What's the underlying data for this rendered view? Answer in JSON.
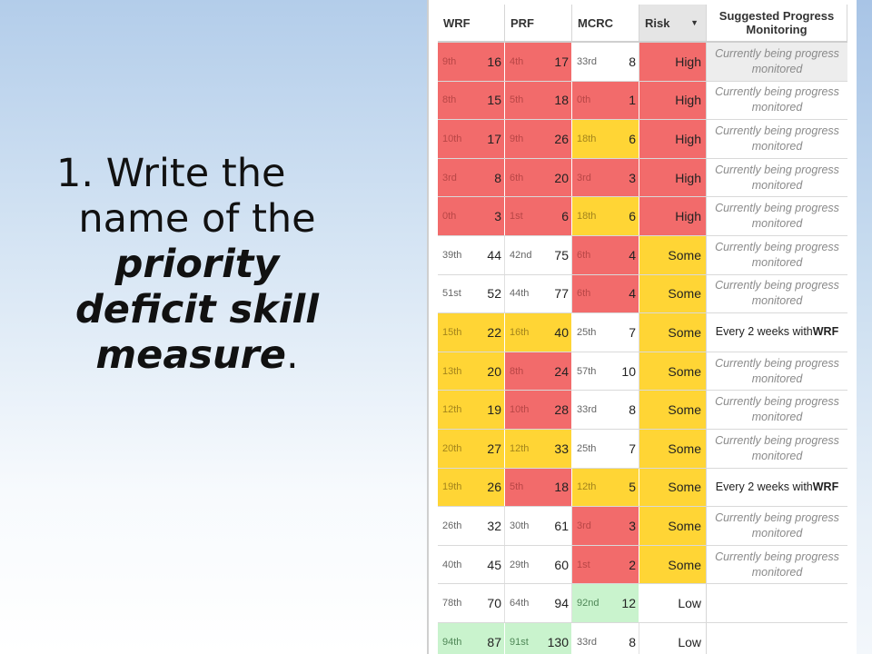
{
  "slide": {
    "line1": "1. Write the",
    "line2": "name of the",
    "line3": "priority",
    "line4": "deficit skill",
    "line5": "measure",
    "line5_suffix": "."
  },
  "table": {
    "headers": {
      "wrf": "WRF",
      "prf": "PRF",
      "mcrc": "MCRC",
      "risk": "Risk",
      "risk_sort_icon": "▼",
      "spm_line1": "Suggested Progress",
      "spm_line2": "Monitoring"
    },
    "colors": {
      "red": "#f26b6b",
      "yellow": "#ffd535",
      "green": "#c9f3cd",
      "white": "#ffffff"
    },
    "rows": [
      {
        "wrf": {
          "pct": "9th",
          "val": "16",
          "c": "red"
        },
        "prf": {
          "pct": "4th",
          "val": "17",
          "c": "red"
        },
        "mcrc": {
          "pct": "33rd",
          "val": "8",
          "c": "white"
        },
        "risk": {
          "text": "High",
          "c": "red"
        },
        "spm": {
          "text": "Currently being progress monitored",
          "kind": "italic",
          "bg": "grey"
        }
      },
      {
        "wrf": {
          "pct": "8th",
          "val": "15",
          "c": "red"
        },
        "prf": {
          "pct": "5th",
          "val": "18",
          "c": "red"
        },
        "mcrc": {
          "pct": "0th",
          "val": "1",
          "c": "red"
        },
        "risk": {
          "text": "High",
          "c": "red"
        },
        "spm": {
          "text": "Currently being progress monitored",
          "kind": "italic",
          "bg": "white"
        }
      },
      {
        "wrf": {
          "pct": "10th",
          "val": "17",
          "c": "red"
        },
        "prf": {
          "pct": "9th",
          "val": "26",
          "c": "red"
        },
        "mcrc": {
          "pct": "18th",
          "val": "6",
          "c": "yellow"
        },
        "risk": {
          "text": "High",
          "c": "red"
        },
        "spm": {
          "text": "Currently being progress monitored",
          "kind": "italic",
          "bg": "white"
        }
      },
      {
        "wrf": {
          "pct": "3rd",
          "val": "8",
          "c": "red"
        },
        "prf": {
          "pct": "6th",
          "val": "20",
          "c": "red"
        },
        "mcrc": {
          "pct": "3rd",
          "val": "3",
          "c": "red"
        },
        "risk": {
          "text": "High",
          "c": "red"
        },
        "spm": {
          "text": "Currently being progress monitored",
          "kind": "italic",
          "bg": "white"
        }
      },
      {
        "wrf": {
          "pct": "0th",
          "val": "3",
          "c": "red"
        },
        "prf": {
          "pct": "1st",
          "val": "6",
          "c": "red"
        },
        "mcrc": {
          "pct": "18th",
          "val": "6",
          "c": "yellow"
        },
        "risk": {
          "text": "High",
          "c": "red"
        },
        "spm": {
          "text": "Currently being progress monitored",
          "kind": "italic",
          "bg": "white"
        }
      },
      {
        "wrf": {
          "pct": "39th",
          "val": "44",
          "c": "white"
        },
        "prf": {
          "pct": "42nd",
          "val": "75",
          "c": "white"
        },
        "mcrc": {
          "pct": "6th",
          "val": "4",
          "c": "red"
        },
        "risk": {
          "text": "Some",
          "c": "yellow"
        },
        "spm": {
          "text": "Currently being progress monitored",
          "kind": "italic",
          "bg": "white"
        }
      },
      {
        "wrf": {
          "pct": "51st",
          "val": "52",
          "c": "white"
        },
        "prf": {
          "pct": "44th",
          "val": "77",
          "c": "white"
        },
        "mcrc": {
          "pct": "6th",
          "val": "4",
          "c": "red"
        },
        "risk": {
          "text": "Some",
          "c": "yellow"
        },
        "spm": {
          "text": "Currently being progress monitored",
          "kind": "italic",
          "bg": "white"
        }
      },
      {
        "wrf": {
          "pct": "15th",
          "val": "22",
          "c": "yellow"
        },
        "prf": {
          "pct": "16th",
          "val": "40",
          "c": "yellow"
        },
        "mcrc": {
          "pct": "25th",
          "val": "7",
          "c": "white"
        },
        "risk": {
          "text": "Some",
          "c": "yellow"
        },
        "spm": {
          "text": "Every 2 weeks with ",
          "bold": "WRF",
          "kind": "plain",
          "bg": "white"
        }
      },
      {
        "wrf": {
          "pct": "13th",
          "val": "20",
          "c": "yellow"
        },
        "prf": {
          "pct": "8th",
          "val": "24",
          "c": "red"
        },
        "mcrc": {
          "pct": "57th",
          "val": "10",
          "c": "white"
        },
        "risk": {
          "text": "Some",
          "c": "yellow"
        },
        "spm": {
          "text": "Currently being progress monitored",
          "kind": "italic",
          "bg": "white"
        }
      },
      {
        "wrf": {
          "pct": "12th",
          "val": "19",
          "c": "yellow"
        },
        "prf": {
          "pct": "10th",
          "val": "28",
          "c": "red"
        },
        "mcrc": {
          "pct": "33rd",
          "val": "8",
          "c": "white"
        },
        "risk": {
          "text": "Some",
          "c": "yellow"
        },
        "spm": {
          "text": "Currently being progress monitored",
          "kind": "italic",
          "bg": "white"
        }
      },
      {
        "wrf": {
          "pct": "20th",
          "val": "27",
          "c": "yellow"
        },
        "prf": {
          "pct": "12th",
          "val": "33",
          "c": "yellow"
        },
        "mcrc": {
          "pct": "25th",
          "val": "7",
          "c": "white"
        },
        "risk": {
          "text": "Some",
          "c": "yellow"
        },
        "spm": {
          "text": "Currently being progress monitored",
          "kind": "italic",
          "bg": "white"
        }
      },
      {
        "wrf": {
          "pct": "19th",
          "val": "26",
          "c": "yellow"
        },
        "prf": {
          "pct": "5th",
          "val": "18",
          "c": "red"
        },
        "mcrc": {
          "pct": "12th",
          "val": "5",
          "c": "yellow"
        },
        "risk": {
          "text": "Some",
          "c": "yellow"
        },
        "spm": {
          "text": "Every 2 weeks with ",
          "bold": "WRF",
          "kind": "plain",
          "bg": "white"
        }
      },
      {
        "wrf": {
          "pct": "26th",
          "val": "32",
          "c": "white"
        },
        "prf": {
          "pct": "30th",
          "val": "61",
          "c": "white"
        },
        "mcrc": {
          "pct": "3rd",
          "val": "3",
          "c": "red"
        },
        "risk": {
          "text": "Some",
          "c": "yellow"
        },
        "spm": {
          "text": "Currently being progress monitored",
          "kind": "italic",
          "bg": "white"
        }
      },
      {
        "wrf": {
          "pct": "40th",
          "val": "45",
          "c": "white"
        },
        "prf": {
          "pct": "29th",
          "val": "60",
          "c": "white"
        },
        "mcrc": {
          "pct": "1st",
          "val": "2",
          "c": "red"
        },
        "risk": {
          "text": "Some",
          "c": "yellow"
        },
        "spm": {
          "text": "Currently being progress monitored",
          "kind": "italic",
          "bg": "white"
        }
      },
      {
        "wrf": {
          "pct": "78th",
          "val": "70",
          "c": "white"
        },
        "prf": {
          "pct": "64th",
          "val": "94",
          "c": "white"
        },
        "mcrc": {
          "pct": "92nd",
          "val": "12",
          "c": "green"
        },
        "risk": {
          "text": "Low",
          "c": "white"
        },
        "spm": {
          "text": "",
          "kind": "plain",
          "bg": "white"
        }
      },
      {
        "wrf": {
          "pct": "94th",
          "val": "87",
          "c": "green"
        },
        "prf": {
          "pct": "91st",
          "val": "130",
          "c": "green"
        },
        "mcrc": {
          "pct": "33rd",
          "val": "8",
          "c": "white"
        },
        "risk": {
          "text": "Low",
          "c": "white"
        },
        "spm": {
          "text": "",
          "kind": "plain",
          "bg": "white"
        }
      }
    ]
  }
}
